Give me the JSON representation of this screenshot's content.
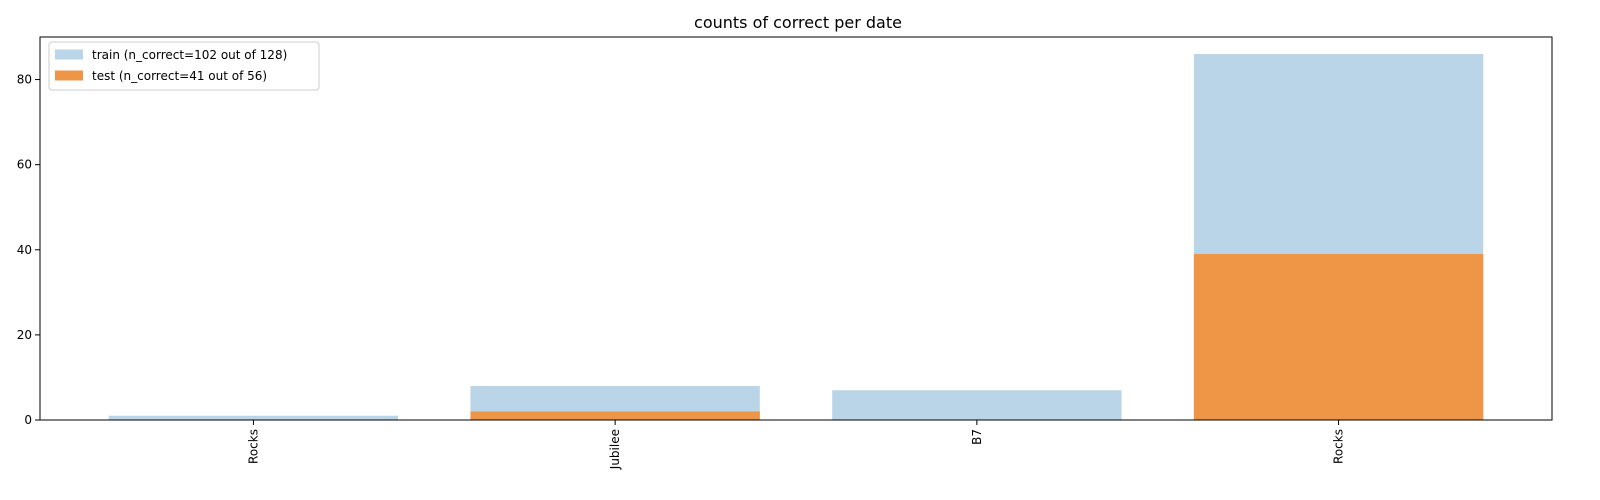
{
  "chart_data": {
    "type": "bar",
    "title": "counts of correct per date",
    "xlabel": "",
    "ylabel": "",
    "categories": [
      "Rocks",
      "Jubilee",
      "B7",
      "Rocks"
    ],
    "series": [
      {
        "name": "train (n_correct=102 out of 128)",
        "values": [
          1,
          8,
          7,
          86
        ],
        "color": "#b9d5e7"
      },
      {
        "name": "test (n_correct=41 out of 56)",
        "values": [
          0,
          2,
          0,
          39
        ],
        "color": "#ee9645"
      }
    ],
    "ylim": [
      0,
      90
    ],
    "yticks": [
      0,
      20,
      40,
      60,
      80
    ],
    "grid": false,
    "legend_position": "top-left",
    "bar_mode": "overlay",
    "xtick_rotation": "vertical"
  }
}
